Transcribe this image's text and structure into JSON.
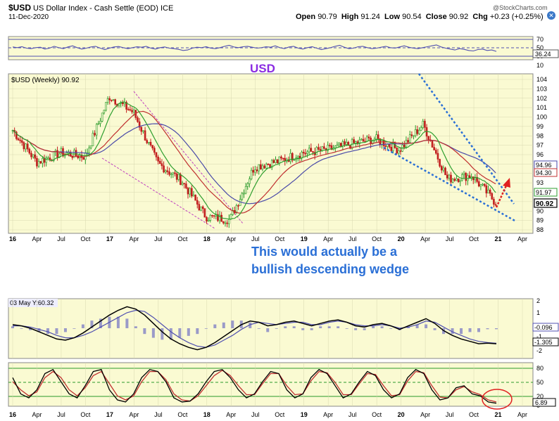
{
  "header": {
    "ticker": "$USD",
    "description": "US Dollar Index - Cash Settle (EOD)",
    "exchange": "ICE",
    "date": "11-Dec-2020",
    "copyright": "@StockCharts.com",
    "ohlc": {
      "open_label": "Open",
      "open": "90.79",
      "high_label": "High",
      "high": "91.24",
      "low_label": "Low",
      "low": "90.54",
      "close_label": "Close",
      "close": "90.92",
      "chg_label": "Chg",
      "chg": "+0.23 (+0.25%)"
    }
  },
  "colors": {
    "panel_bg": "#fafad2",
    "price": "#000000",
    "up_candle": "#2a9a2a",
    "down_candle": "#c21e1e",
    "ma_fast": "#2f9f2f",
    "ma_mid": "#c03030",
    "ma_slow": "#4a4aa8",
    "wedge": "#2a6fd6",
    "channel": "#c040c0",
    "annotation_purple": "#8a2be2",
    "annotation_blue": "#2a6fd6",
    "arrow": "#e02020",
    "circle": "#e02020",
    "rsi": "#5050b0",
    "histogram": "#9a9ac8"
  },
  "rsi_panel": {
    "ticks": [
      "70",
      "50",
      "30"
    ],
    "value_label": "36.24",
    "value": 36.24,
    "series": [
      55,
      52,
      56,
      50,
      48,
      52,
      54,
      46,
      50,
      58,
      52,
      48,
      55,
      60,
      52,
      46,
      50,
      55,
      58,
      50,
      44,
      50,
      55,
      57,
      52,
      48,
      52,
      56,
      54,
      58,
      50,
      46,
      52,
      55,
      50,
      48,
      45,
      40,
      42,
      50,
      54,
      52,
      56,
      50,
      48,
      52,
      58,
      62,
      55,
      52,
      56,
      58,
      54,
      50,
      52,
      56,
      54,
      60,
      52,
      48,
      55,
      58,
      50,
      46,
      52,
      56,
      50,
      44,
      48,
      52,
      58,
      62,
      54,
      48,
      50,
      56,
      58,
      52,
      48,
      50,
      54,
      58,
      52,
      50,
      55,
      60,
      54,
      50,
      48,
      52,
      56,
      60,
      64,
      55,
      50,
      46,
      42,
      48,
      45,
      40,
      38,
      44,
      46,
      40,
      42,
      36
    ]
  },
  "price_panel": {
    "legend": "$USD (Weekly) 90.92",
    "annotation": "USD",
    "wedge_note_line1": "This would actually be a",
    "wedge_note_line2": "bullish descending wedge",
    "price_ticks": [
      "104",
      "103",
      "102",
      "101",
      "100",
      "99",
      "98",
      "97",
      "96",
      "95",
      "94",
      "93",
      "92",
      "91",
      "90",
      "89",
      "88"
    ],
    "value_labels": {
      "ma_slow": "94.96",
      "ma_mid": "94.30",
      "ma_fast": "91.97",
      "close": "90.92"
    },
    "time_labels": [
      "16",
      "Apr",
      "Jul",
      "Oct",
      "17",
      "Apr",
      "Jul",
      "Oct",
      "18",
      "Apr",
      "Jul",
      "Oct",
      "19",
      "Apr",
      "Jul",
      "Oct",
      "20",
      "Apr",
      "Jul",
      "Oct",
      "21",
      "Apr"
    ]
  },
  "chart_data": {
    "type": "line",
    "title": "$USD (Weekly) 90.92",
    "xlabel": "",
    "ylabel": "",
    "ylim": [
      87.5,
      104.5
    ],
    "x": [
      "16",
      "Apr",
      "Jul",
      "Oct",
      "17",
      "Apr",
      "Jul",
      "Oct",
      "18",
      "Apr",
      "Jul",
      "Oct",
      "19",
      "Apr",
      "Jul",
      "Oct",
      "20",
      "Apr",
      "Jul",
      "Oct",
      "21"
    ],
    "series": [
      {
        "name": "$USD",
        "values": [
          98.6,
          95.2,
          96.2,
          95.8,
          102.2,
          100.5,
          95.1,
          93.2,
          89.4,
          89.1,
          94.7,
          95.3,
          96.2,
          96.5,
          97.1,
          97.7,
          96.5,
          99.2,
          93.4,
          93.8,
          90.9
        ]
      }
    ],
    "grid": true,
    "legend": "top-left"
  },
  "macd_panel": {
    "legend": "03 May Y:60.32",
    "ticks": [
      "2",
      "1",
      "0",
      "-1",
      "-2"
    ],
    "value_labels": [
      "-0.096",
      "-1.305"
    ],
    "macd": [
      0.3,
      0.2,
      0.0,
      -0.3,
      -0.6,
      -0.9,
      -1.0,
      -0.8,
      -0.4,
      0.1,
      0.6,
      1.1,
      1.5,
      1.8,
      1.6,
      1.1,
      0.4,
      -0.3,
      -0.9,
      -1.3,
      -1.6,
      -1.8,
      -1.6,
      -1.2,
      -0.7,
      -0.2,
      0.3,
      0.6,
      0.5,
      0.2,
      0.3,
      0.5,
      0.6,
      0.4,
      0.2,
      0.4,
      0.6,
      0.7,
      0.5,
      0.2,
      0.1,
      0.3,
      0.4,
      0.2,
      -0.1,
      0.2,
      0.5,
      0.8,
      0.4,
      -0.2,
      -0.6,
      -0.9,
      -1.1,
      -1.3,
      -1.25,
      -1.3
    ],
    "signal": [
      0.2,
      0.2,
      0.1,
      -0.1,
      -0.3,
      -0.6,
      -0.8,
      -0.8,
      -0.6,
      -0.3,
      0.1,
      0.5,
      0.9,
      1.3,
      1.5,
      1.4,
      0.9,
      0.3,
      -0.3,
      -0.8,
      -1.2,
      -1.5,
      -1.6,
      -1.4,
      -1.0,
      -0.6,
      -0.1,
      0.3,
      0.5,
      0.4,
      0.3,
      0.4,
      0.5,
      0.5,
      0.3,
      0.3,
      0.5,
      0.6,
      0.5,
      0.3,
      0.2,
      0.2,
      0.3,
      0.2,
      0.0,
      0.1,
      0.3,
      0.6,
      0.5,
      0.1,
      -0.3,
      -0.6,
      -0.9,
      -1.1,
      -1.2,
      -1.25
    ]
  },
  "stoch_panel": {
    "ticks": [
      "80",
      "50",
      "20",
      "0"
    ],
    "value_label": "6.89",
    "k": [
      70,
      30,
      20,
      40,
      80,
      90,
      60,
      30,
      20,
      50,
      85,
      90,
      40,
      15,
      10,
      30,
      70,
      90,
      85,
      60,
      20,
      10,
      12,
      30,
      60,
      85,
      90,
      70,
      40,
      20,
      30,
      60,
      85,
      80,
      40,
      20,
      30,
      70,
      90,
      80,
      50,
      20,
      30,
      60,
      85,
      75,
      40,
      20,
      30,
      70,
      90,
      80,
      40,
      15,
      20,
      45,
      50,
      30,
      25,
      10,
      6.89
    ],
    "d": [
      60,
      40,
      25,
      35,
      70,
      85,
      70,
      40,
      25,
      45,
      75,
      85,
      55,
      25,
      15,
      25,
      60,
      85,
      85,
      65,
      30,
      15,
      12,
      25,
      50,
      75,
      88,
      75,
      50,
      28,
      28,
      55,
      80,
      80,
      50,
      28,
      30,
      62,
      85,
      82,
      58,
      28,
      28,
      55,
      80,
      78,
      50,
      25,
      28,
      62,
      85,
      82,
      50,
      22,
      20,
      40,
      48,
      35,
      28,
      15,
      10
    ]
  }
}
